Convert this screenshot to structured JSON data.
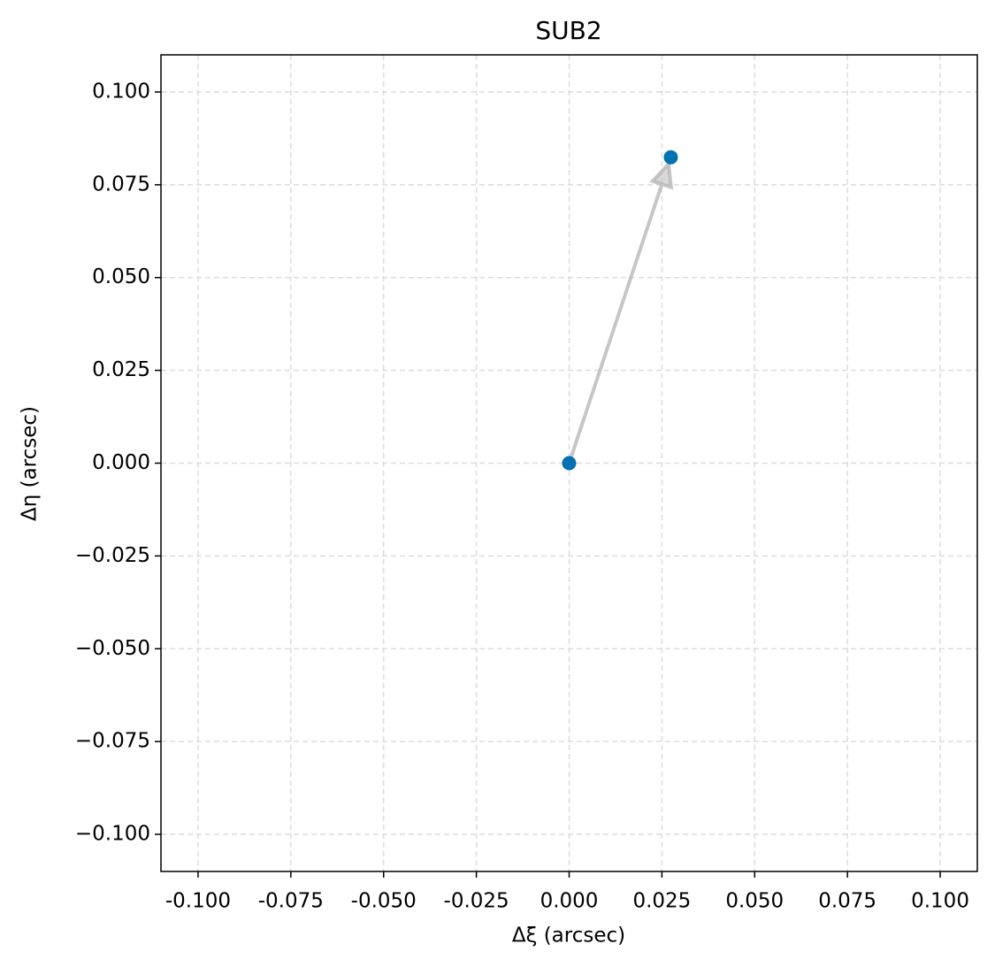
{
  "chart_data": {
    "type": "scatter",
    "title": "SUB2",
    "x_label": "Δξ (arcsec)",
    "y_label": "Δη (arcsec)",
    "x": [
      0,
      0.0274
    ],
    "values": [
      0,
      0.0824
    ],
    "color": "#0072b2",
    "arrow": true,
    "arrow_color": "#b8b8b8",
    "xlim": [
      -0.11,
      0.11
    ],
    "ylim": [
      -0.11,
      0.11
    ],
    "xticks": [
      {
        "value": -0.1,
        "label": "-0.100"
      },
      {
        "value": -0.075,
        "label": "-0.075"
      },
      {
        "value": -0.05,
        "label": "-0.050"
      },
      {
        "value": -0.025,
        "label": "-0.025"
      },
      {
        "value": 0,
        "label": "0.000"
      },
      {
        "value": 0.025,
        "label": "0.025"
      },
      {
        "value": 0.05,
        "label": "0.050"
      },
      {
        "value": 0.075,
        "label": "0.075"
      },
      {
        "value": 0.1,
        "label": "0.100"
      }
    ],
    "yticks": [
      {
        "value": -0.1,
        "label": "−0.100"
      },
      {
        "value": -0.075,
        "label": "−0.075"
      },
      {
        "value": -0.05,
        "label": "−0.050"
      },
      {
        "value": -0.025,
        "label": "−0.025"
      },
      {
        "value": 0,
        "label": "0.000"
      },
      {
        "value": 0.025,
        "label": "0.025"
      },
      {
        "value": 0.05,
        "label": "0.050"
      },
      {
        "value": 0.075,
        "label": "0.075"
      },
      {
        "value": 0.1,
        "label": "0.100"
      }
    ],
    "grid": true
  }
}
